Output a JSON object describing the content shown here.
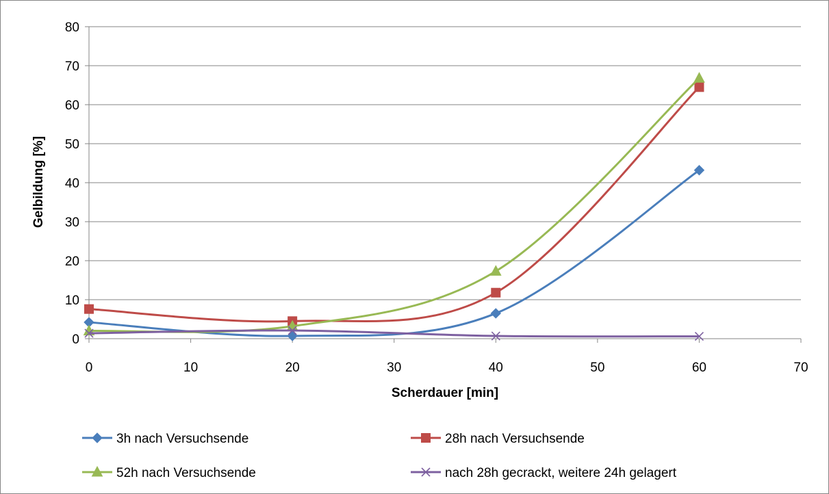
{
  "chart_data": {
    "type": "line",
    "title": "",
    "xlabel": "Scherdauer [min]",
    "ylabel": "Gelbildung [%]",
    "xlim": [
      0,
      70
    ],
    "ylim": [
      0,
      80
    ],
    "xticks": [
      0,
      10,
      20,
      30,
      40,
      50,
      60,
      70
    ],
    "yticks": [
      0,
      10,
      20,
      30,
      40,
      50,
      60,
      70,
      80
    ],
    "grid": "horizontal",
    "smooth": true,
    "legend_position": "bottom",
    "series": [
      {
        "name": "3h nach Versuchsende",
        "color": "#4a7ebb",
        "marker": "diamond",
        "x": [
          0,
          20,
          40,
          60
        ],
        "y": [
          4.2,
          0.7,
          6.5,
          43.2
        ]
      },
      {
        "name": "28h nach Versuchsende",
        "color": "#be4b48",
        "marker": "square",
        "x": [
          0,
          20,
          40,
          60
        ],
        "y": [
          7.6,
          4.5,
          11.8,
          64.5
        ]
      },
      {
        "name": "52h nach Versuchsende",
        "color": "#98b954",
        "marker": "triangle",
        "x": [
          0,
          20,
          40,
          60
        ],
        "y": [
          2.0,
          3.2,
          17.3,
          66.8
        ]
      },
      {
        "name": "nach 28h gecrackt, weitere 24h gelagert",
        "color": "#7d60a0",
        "marker": "x",
        "x": [
          0,
          20,
          40,
          60
        ],
        "y": [
          1.4,
          2.1,
          0.7,
          0.6
        ]
      }
    ]
  }
}
